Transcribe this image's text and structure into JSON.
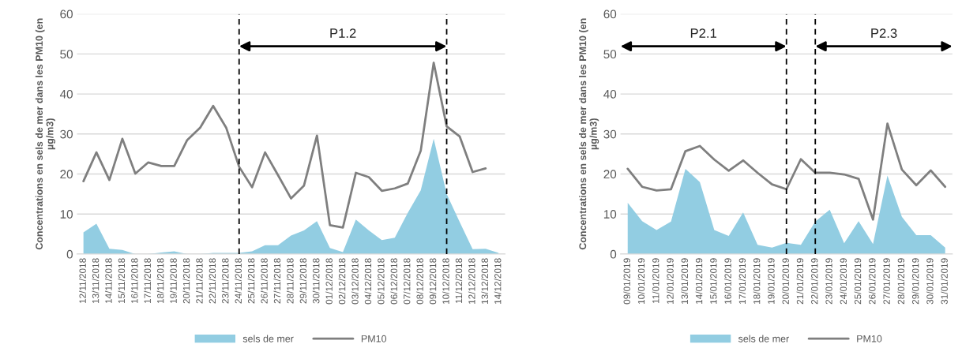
{
  "chart_data": [
    {
      "type": "line",
      "ylabel": "Concentrations en sels de mer dans les PM10 (en µg/m3)",
      "categories": [
        "12/11/2018",
        "13/11/2018",
        "14/11/2018",
        "15/11/2018",
        "16/11/2018",
        "17/11/2018",
        "18/11/2018",
        "19/11/2018",
        "20/11/2018",
        "21/11/2018",
        "22/11/2018",
        "23/11/2018",
        "24/11/2018",
        "25/11/2018",
        "26/11/2018",
        "27/11/2018",
        "28/11/2018",
        "29/11/2018",
        "30/11/2018",
        "01/12/2018",
        "02/12/2018",
        "03/12/2018",
        "04/12/2018",
        "05/12/2018",
        "06/12/2018",
        "07/12/2018",
        "08/12/2018",
        "09/12/2018",
        "10/12/2018",
        "11/12/2018",
        "12/12/2018",
        "13/12/2018",
        "14/12/2018"
      ],
      "series": [
        {
          "name": "sels de mer",
          "type": "area",
          "color": "#92cde2",
          "values": [
            5.4,
            7.6,
            1.3,
            1.0,
            0,
            0,
            0.4,
            0.7,
            0,
            0,
            0.3,
            0.3,
            0.3,
            0.7,
            2.2,
            2.2,
            4.6,
            5.9,
            8.2,
            1.5,
            0.5,
            8.6,
            5.9,
            3.5,
            4.1,
            10.3,
            15.9,
            28.8,
            15.0,
            8.0,
            1.2,
            1.3,
            0.3
          ]
        },
        {
          "name": "PM10",
          "color": "#7f7f7f",
          "values": [
            18.2,
            25.4,
            18.5,
            28.8,
            20.1,
            22.9,
            22.0,
            22.0,
            28.5,
            31.6,
            37.0,
            31.6,
            21.8,
            16.7,
            25.4,
            19.7,
            13.9,
            17.1,
            29.6,
            7.2,
            6.6,
            20.3,
            19.2,
            15.8,
            16.4,
            17.6,
            25.8,
            47.8,
            31.9,
            29.4,
            20.5,
            21.4,
            null
          ]
        }
      ],
      "ylim": [
        0,
        60
      ],
      "yticks": [
        0,
        10,
        20,
        30,
        40,
        50,
        60
      ],
      "grid": "y",
      "legend": "bottom",
      "ref_lines": [
        {
          "axis": "x",
          "value": "24/11/2018",
          "label": null,
          "color": "#000000",
          "line_style": "dashed"
        },
        {
          "axis": "x",
          "value": "10/12/2018",
          "label": null,
          "color": "#000000",
          "line_style": "dashed"
        }
      ],
      "annotations": [
        "P1.2"
      ]
    },
    {
      "type": "line",
      "ylabel": "Concentrations en sels de mer dans les PM10 (en µg/m3)",
      "categories": [
        "09/01/2019",
        "10/01/2019",
        "11/01/2019",
        "12/01/2019",
        "13/01/2019",
        "14/01/2019",
        "15/01/2019",
        "16/01/2019",
        "17/01/2019",
        "18/01/2019",
        "19/01/2019",
        "20/01/2019",
        "21/01/2019",
        "22/01/2019",
        "23/01/2019",
        "24/01/2019",
        "25/01/2019",
        "26/01/2019",
        "27/01/2019",
        "28/01/2019",
        "29/01/2019",
        "30/01/2019",
        "31/01/2019"
      ],
      "series": [
        {
          "name": "sels de mer",
          "type": "area",
          "color": "#92cde2",
          "values": [
            12.8,
            8.2,
            6.0,
            8.1,
            21.3,
            18.0,
            6.0,
            4.5,
            10.4,
            2.3,
            1.6,
            2.8,
            2.3,
            8.1,
            11.1,
            2.7,
            8.2,
            2.5,
            19.6,
            9.3,
            4.7,
            4.7,
            1.6
          ]
        },
        {
          "name": "PM10",
          "color": "#7f7f7f",
          "values": [
            21.3,
            16.8,
            15.9,
            16.2,
            25.7,
            27.0,
            23.6,
            20.8,
            23.4,
            20.3,
            17.4,
            16.2,
            23.7,
            20.3,
            20.3,
            19.9,
            18.8,
            8.6,
            32.6,
            21.1,
            17.2,
            20.9,
            16.8
          ]
        }
      ],
      "ylim": [
        0,
        60
      ],
      "yticks": [
        0,
        10,
        20,
        30,
        40,
        50,
        60
      ],
      "grid": "y",
      "legend": "bottom",
      "ref_lines": [
        {
          "axis": "x",
          "value": "20/01/2019",
          "label": null,
          "color": "#000000",
          "line_style": "dashed"
        },
        {
          "axis": "x",
          "value": "22/01/2019",
          "label": null,
          "color": "#000000",
          "line_style": "dashed"
        }
      ],
      "annotations": [
        "P2.1",
        "P2.3"
      ]
    }
  ]
}
